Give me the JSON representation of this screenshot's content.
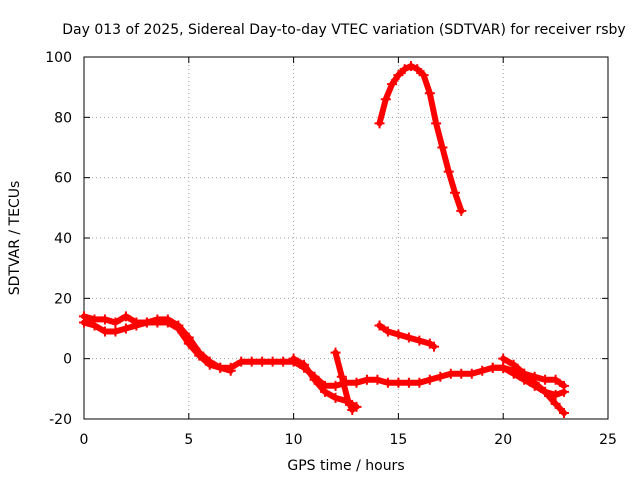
{
  "chart_data": {
    "type": "scatter",
    "title": "Day 013 of 2025, Sidereal Day-to-day VTEC variation (SDTVAR) for receiver rsby",
    "xlabel": "GPS time / hours",
    "ylabel": "SDTVAR / TECUs",
    "xlim": [
      0,
      25
    ],
    "ylim": [
      -20,
      100
    ],
    "xticks": [
      0,
      5,
      10,
      15,
      20,
      25
    ],
    "yticks": [
      -20,
      0,
      20,
      40,
      60,
      80,
      100
    ],
    "xtick_labels": [
      "0",
      "5",
      "10",
      "15",
      "20",
      "25"
    ],
    "ytick_labels": [
      "-20",
      "0",
      "20",
      "40",
      "60",
      "80",
      "100"
    ],
    "grid": true,
    "marker_color": "#ff0000",
    "series": [
      {
        "name": "trace-1",
        "x": [
          0.0,
          0.5,
          1.0,
          1.5,
          2.0,
          2.5,
          3.0,
          3.5,
          4.0,
          4.5,
          5.0,
          5.5,
          6.0,
          6.5,
          7.0,
          7.5,
          8.0,
          8.5,
          9.0,
          9.5,
          10.0,
          10.5,
          11.0,
          11.5,
          12.0,
          12.5,
          13.0,
          13.5,
          14.0,
          14.5,
          15.0,
          15.5,
          16.0,
          16.5,
          17.0,
          17.5,
          18.0,
          18.5,
          19.0,
          19.5,
          20.0,
          20.5,
          21.0,
          21.5,
          22.0,
          22.5,
          22.9
        ],
        "y": [
          14,
          13,
          13,
          12,
          14,
          12,
          12,
          13,
          13,
          11,
          7,
          2,
          -1,
          -3,
          -3,
          -1,
          -1,
          -1,
          -1,
          -1,
          -1,
          -3,
          -6,
          -9,
          -9,
          -8,
          -8,
          -7,
          -7,
          -8,
          -8,
          -8,
          -8,
          -7,
          -6,
          -5,
          -5,
          -5,
          -4,
          -3,
          -3,
          -4,
          -5,
          -6,
          -7,
          -7,
          -9
        ]
      },
      {
        "name": "trace-2",
        "x": [
          0.0,
          0.5,
          1.0,
          1.5,
          2.0,
          2.5,
          3.0,
          3.5,
          4.0,
          4.5,
          5.0,
          5.5,
          6.0,
          6.5,
          7.0
        ],
        "y": [
          12,
          11,
          9,
          9,
          10,
          11,
          12,
          12,
          12,
          10,
          5,
          1,
          -2,
          -3,
          -4
        ]
      },
      {
        "name": "trace-3",
        "x": [
          10.0,
          10.5,
          11.0,
          11.5,
          12.0,
          12.5,
          13.0
        ],
        "y": [
          0,
          -2,
          -7,
          -11,
          -13,
          -14,
          -16
        ]
      },
      {
        "name": "trace-4",
        "x": [
          12.0,
          12.3,
          12.6,
          12.8
        ],
        "y": [
          2,
          -6,
          -14,
          -17
        ]
      },
      {
        "name": "trace-5",
        "x": [
          20.0,
          20.5,
          21.0,
          21.5,
          22.0,
          22.5,
          22.9
        ],
        "y": [
          0,
          -2,
          -5,
          -8,
          -11,
          -15,
          -18
        ]
      },
      {
        "name": "trace-6",
        "x": [
          19.5,
          20.0,
          20.5,
          21.0,
          21.5,
          22.0,
          22.5,
          22.9
        ],
        "y": [
          -3,
          -3,
          -5,
          -7,
          -9,
          -11,
          -12,
          -11
        ]
      },
      {
        "name": "trace-7",
        "x": [
          14.1,
          14.4,
          14.7,
          15.0,
          15.3,
          15.6,
          15.9,
          16.2,
          16.5,
          16.8,
          17.1,
          17.4,
          17.7,
          18.0
        ],
        "y": [
          78,
          86,
          91,
          94,
          96,
          97,
          96,
          94,
          88,
          78,
          70,
          62,
          55,
          49
        ]
      },
      {
        "name": "trace-8",
        "x": [
          14.1,
          14.5,
          15.0,
          15.5,
          16.0,
          16.5,
          16.7
        ],
        "y": [
          11,
          9,
          8,
          7,
          6,
          5,
          4
        ]
      }
    ]
  }
}
